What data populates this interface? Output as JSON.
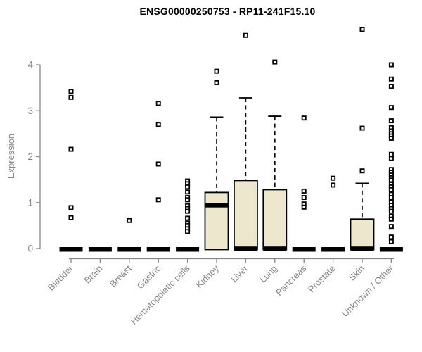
{
  "chart_data": {
    "type": "boxplot",
    "title": "ENSG00000250753 - RP11-241F15.10",
    "ylabel": "Expression",
    "xlabel": "",
    "ylim": [
      0,
      4.8
    ],
    "yticks": [
      0,
      1,
      2,
      3,
      4
    ],
    "grid": false,
    "legend": false,
    "colors": {
      "box_fill": "#EDE8CD",
      "box_stroke": "#000000",
      "median_color": "#000000",
      "outlier_color": "#000000",
      "axis": "#878787",
      "tick_label": "#878787",
      "title": "#000000",
      "background": "#FFFFFF"
    },
    "categories": [
      "Bladder",
      "Brain",
      "Breast",
      "Gastric",
      "Hematopoietic cells",
      "Kidney",
      "Liver",
      "Lung",
      "Pancreas",
      "Prostate",
      "Skin",
      "Unknown / Other"
    ],
    "series": [
      {
        "category": "Bladder",
        "q1": 0,
        "median": 0,
        "q3": 0,
        "whisker_high": 0,
        "outliers": [
          3.42,
          3.29,
          2.16,
          0.89,
          0.67
        ]
      },
      {
        "category": "Brain",
        "q1": 0,
        "median": 0,
        "q3": 0,
        "whisker_high": 0,
        "outliers": []
      },
      {
        "category": "Breast",
        "q1": 0,
        "median": 0,
        "q3": 0,
        "whisker_high": 0,
        "outliers": [
          0.61
        ]
      },
      {
        "category": "Gastric",
        "q1": 0,
        "median": 0,
        "q3": 0,
        "whisker_high": 0,
        "outliers": [
          3.16,
          2.7,
          1.84,
          1.06
        ]
      },
      {
        "category": "Hematopoietic cells",
        "q1": 0,
        "median": 0,
        "q3": 0,
        "whisker_high": 0,
        "outliers": [
          1.47,
          1.41,
          1.34,
          1.23,
          1.11,
          1.06,
          0.93,
          0.87,
          0.81,
          0.66,
          0.55,
          0.5,
          0.43,
          0.37
        ]
      },
      {
        "category": "Kidney",
        "q1": 0,
        "median": 0.94,
        "q3": 1.22,
        "whisker_high": 2.86,
        "outliers": [
          3.86,
          3.61
        ]
      },
      {
        "category": "Liver",
        "q1": 0,
        "median": 0,
        "q3": 1.48,
        "whisker_high": 3.28,
        "outliers": [
          4.64
        ]
      },
      {
        "category": "Lung",
        "q1": 0,
        "median": 0,
        "q3": 1.28,
        "whisker_high": 2.88,
        "outliers": [
          4.06
        ]
      },
      {
        "category": "Pancreas",
        "q1": 0,
        "median": 0,
        "q3": 0,
        "whisker_high": 0,
        "outliers": [
          2.84,
          1.25,
          1.11,
          0.97,
          0.9
        ]
      },
      {
        "category": "Prostate",
        "q1": 0,
        "median": 0,
        "q3": 0,
        "whisker_high": 0,
        "outliers": [
          1.53,
          1.38
        ]
      },
      {
        "category": "Skin",
        "q1": 0,
        "median": 0,
        "q3": 0.64,
        "whisker_high": 1.42,
        "outliers": [
          4.77,
          2.62,
          1.69
        ]
      },
      {
        "category": "Unknown / Other",
        "q1": 0,
        "median": 0,
        "q3": 0,
        "whisker_high": 0,
        "outliers": [
          4.0,
          3.69,
          3.53,
          3.07,
          2.78,
          2.63,
          2.56,
          2.5,
          2.45,
          2.4,
          2.05,
          1.96,
          1.72,
          1.66,
          1.6,
          1.54,
          1.49,
          1.4,
          1.34,
          1.28,
          1.18,
          1.11,
          1.01,
          0.94,
          0.87,
          0.81,
          0.7,
          0.64,
          0.48,
          0.25,
          0.15
        ]
      }
    ]
  }
}
